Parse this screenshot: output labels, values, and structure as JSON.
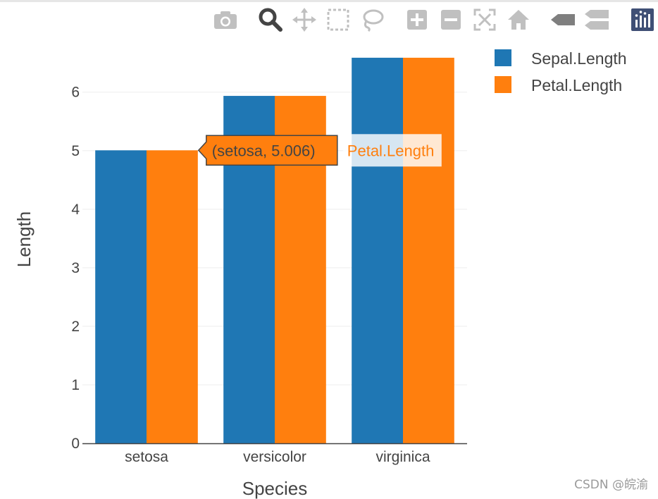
{
  "modebar": {
    "buttons": [
      {
        "name": "camera-icon",
        "active": false
      },
      {
        "name": "zoom-icon",
        "active": true
      },
      {
        "name": "pan-icon",
        "active": false
      },
      {
        "name": "box-select-icon",
        "active": false
      },
      {
        "name": "lasso-select-icon",
        "active": false
      },
      {
        "name": "zoom-in-icon",
        "active": false
      },
      {
        "name": "zoom-out-icon",
        "active": false
      },
      {
        "name": "autoscale-icon",
        "active": false
      },
      {
        "name": "reset-axes-icon",
        "active": false
      },
      {
        "name": "hover-closest-icon",
        "active": false
      },
      {
        "name": "hover-compare-icon",
        "active": false
      },
      {
        "name": "plotly-logo-icon",
        "active": false
      }
    ],
    "icon_color": "#c0c0c0",
    "active_color": "#444444",
    "logo_color": "#3f4f75"
  },
  "chart_data": {
    "type": "bar",
    "barmode": "group",
    "categories": [
      "setosa",
      "versicolor",
      "virginica"
    ],
    "series": [
      {
        "name": "Sepal.Length",
        "values": [
          5.006,
          5.936,
          6.588
        ],
        "color": "#1f77b4"
      },
      {
        "name": "Petal.Length",
        "values": [
          5.006,
          5.936,
          6.588
        ],
        "color": "#ff7f0e"
      }
    ],
    "xlabel": "Species",
    "ylabel": "Length",
    "ylim": [
      0,
      6.9
    ],
    "yticks": [
      0,
      1,
      2,
      3,
      4,
      5,
      6
    ],
    "grid": true,
    "legend_position": "top-right",
    "hover": {
      "label": "(setosa, 5.006)",
      "series": "Petal.Length",
      "category": "setosa"
    }
  },
  "watermark": "CSDN @皖渝"
}
